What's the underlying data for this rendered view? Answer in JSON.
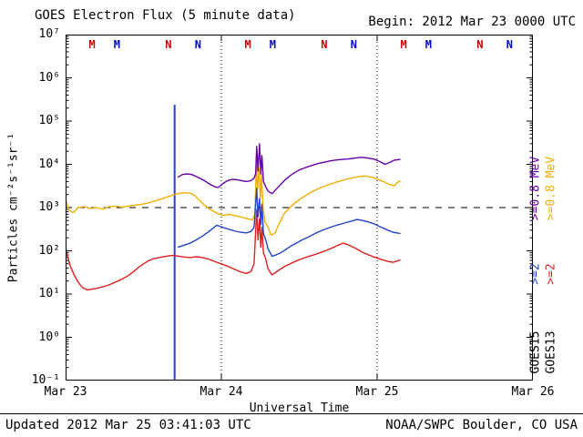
{
  "header": {
    "begin_label": "Begin: 2012 Mar 23 0000 UTC"
  },
  "footer": {
    "updated": "Updated 2012 Mar 25 03:41:03 UTC",
    "source": "NOAA/SWPC Boulder, CO USA"
  },
  "chart_data": {
    "type": "line",
    "title": "GOES Electron Flux (5 minute data)",
    "xlabel": "Universal Time",
    "ylabel": "Particles cm⁻²s⁻¹sr⁻¹",
    "y_scale": "log",
    "y_range": [
      0.1,
      10000000
    ],
    "y_tick_labels": [
      "10⁷",
      "10⁶",
      "10⁵",
      "10⁴",
      "10³",
      "10²",
      "10¹",
      "10⁰",
      "10⁻¹"
    ],
    "x_range_days": [
      0,
      3
    ],
    "x_tick_labels": [
      "Mar 23",
      "Mar 24",
      "Mar 25",
      "Mar 26"
    ],
    "grid": {
      "day_boundaries_t": [
        1,
        2
      ],
      "style": "dotted"
    },
    "threshold_line": {
      "value": 1000,
      "style": "dashed",
      "color": "#000000"
    },
    "event_line": {
      "t": 0.7,
      "flux_min": 0.1,
      "flux_max": 240000,
      "color": "#2244CC"
    },
    "time_markers": [
      {
        "t": 0.17,
        "label": "M",
        "color": "#CC0000"
      },
      {
        "t": 0.33,
        "label": "M",
        "color": "#0000CC"
      },
      {
        "t": 0.66,
        "label": "N",
        "color": "#CC0000"
      },
      {
        "t": 0.85,
        "label": "N",
        "color": "#0000CC"
      },
      {
        "t": 1.17,
        "label": "M",
        "color": "#CC0000"
      },
      {
        "t": 1.33,
        "label": "M",
        "color": "#0000CC"
      },
      {
        "t": 1.66,
        "label": "N",
        "color": "#CC0000"
      },
      {
        "t": 1.85,
        "label": "N",
        "color": "#0000CC"
      },
      {
        "t": 2.17,
        "label": "M",
        "color": "#CC0000"
      },
      {
        "t": 2.33,
        "label": "M",
        "color": "#0000CC"
      },
      {
        "t": 2.66,
        "label": "N",
        "color": "#CC0000"
      },
      {
        "t": 2.85,
        "label": "N",
        "color": "#0000CC"
      }
    ],
    "legend": {
      "columns": [
        {
          "satellite": "GOES15",
          "labels": [
            {
              "text": ">=0.8 MeV",
              "color": "#6600AA"
            },
            {
              "text": ">=2",
              "color": "#2244CC"
            }
          ]
        },
        {
          "satellite": "GOES13",
          "labels": [
            {
              "text": ">=0.8 MeV",
              "color": "#EFAF00"
            },
            {
              "text": ">=2",
              "color": "#DD2020"
            }
          ]
        }
      ]
    },
    "series": [
      {
        "name": "GOES13 >=2 MeV",
        "color": "#DD2020",
        "points": [
          [
            0,
            130
          ],
          [
            0.01,
            80
          ],
          [
            0.03,
            45
          ],
          [
            0.05,
            30
          ],
          [
            0.07,
            22
          ],
          [
            0.09,
            17
          ],
          [
            0.11,
            14
          ],
          [
            0.14,
            12.5
          ],
          [
            0.17,
            13
          ],
          [
            0.2,
            13.5
          ],
          [
            0.23,
            14.5
          ],
          [
            0.26,
            15.5
          ],
          [
            0.29,
            17
          ],
          [
            0.32,
            19
          ],
          [
            0.35,
            21
          ],
          [
            0.38,
            24
          ],
          [
            0.41,
            28
          ],
          [
            0.44,
            34
          ],
          [
            0.47,
            42
          ],
          [
            0.5,
            50
          ],
          [
            0.53,
            58
          ],
          [
            0.56,
            65
          ],
          [
            0.6,
            70
          ],
          [
            0.64,
            74
          ],
          [
            0.68,
            78
          ],
          [
            0.72,
            76
          ],
          [
            0.76,
            72
          ],
          [
            0.8,
            70
          ],
          [
            0.84,
            73
          ],
          [
            0.88,
            70
          ],
          [
            0.92,
            64
          ],
          [
            0.96,
            56
          ],
          [
            1,
            50
          ],
          [
            1.04,
            44
          ],
          [
            1.08,
            38
          ],
          [
            1.12,
            33
          ],
          [
            1.16,
            30
          ],
          [
            1.19,
            33
          ],
          [
            1.21,
            50
          ],
          [
            1.227,
            900
          ],
          [
            1.235,
            180
          ],
          [
            1.245,
            550
          ],
          [
            1.253,
            120
          ],
          [
            1.26,
            350
          ],
          [
            1.27,
            90
          ],
          [
            1.285,
            65
          ],
          [
            1.3,
            38
          ],
          [
            1.325,
            28
          ],
          [
            1.35,
            32
          ],
          [
            1.38,
            38
          ],
          [
            1.41,
            44
          ],
          [
            1.44,
            50
          ],
          [
            1.48,
            58
          ],
          [
            1.52,
            66
          ],
          [
            1.56,
            74
          ],
          [
            1.6,
            82
          ],
          [
            1.64,
            92
          ],
          [
            1.68,
            105
          ],
          [
            1.72,
            120
          ],
          [
            1.75,
            135
          ],
          [
            1.78,
            150
          ],
          [
            1.81,
            140
          ],
          [
            1.84,
            125
          ],
          [
            1.87,
            110
          ],
          [
            1.9,
            95
          ],
          [
            1.94,
            82
          ],
          [
            1.98,
            72
          ],
          [
            2.02,
            64
          ],
          [
            2.06,
            58
          ],
          [
            2.1,
            54
          ],
          [
            2.13,
            58
          ],
          [
            2.15,
            62
          ]
        ]
      },
      {
        "name": "GOES13 >=0.8 MeV",
        "color": "#EFAF00",
        "points": [
          [
            0,
            1600
          ],
          [
            0.02,
            900
          ],
          [
            0.05,
            760
          ],
          [
            0.08,
            1000
          ],
          [
            0.12,
            1050
          ],
          [
            0.16,
            950
          ],
          [
            0.2,
            1000
          ],
          [
            0.24,
            920
          ],
          [
            0.28,
            1050
          ],
          [
            0.32,
            1080
          ],
          [
            0.36,
            1020
          ],
          [
            0.4,
            1080
          ],
          [
            0.44,
            1130
          ],
          [
            0.48,
            1180
          ],
          [
            0.52,
            1250
          ],
          [
            0.56,
            1380
          ],
          [
            0.6,
            1520
          ],
          [
            0.64,
            1700
          ],
          [
            0.68,
            1900
          ],
          [
            0.72,
            2100
          ],
          [
            0.76,
            2200
          ],
          [
            0.8,
            2150
          ],
          [
            0.83,
            1900
          ],
          [
            0.86,
            1450
          ],
          [
            0.89,
            1150
          ],
          [
            0.92,
            950
          ],
          [
            0.95,
            820
          ],
          [
            0.98,
            720
          ],
          [
            1.01,
            660
          ],
          [
            1.05,
            700
          ],
          [
            1.09,
            650
          ],
          [
            1.13,
            600
          ],
          [
            1.17,
            550
          ],
          [
            1.2,
            520
          ],
          [
            1.215,
            700
          ],
          [
            1.225,
            11000
          ],
          [
            1.232,
            2600
          ],
          [
            1.242,
            8000
          ],
          [
            1.25,
            1600
          ],
          [
            1.258,
            6000
          ],
          [
            1.268,
            950
          ],
          [
            1.28,
            460
          ],
          [
            1.3,
            350
          ],
          [
            1.32,
            230
          ],
          [
            1.345,
            260
          ],
          [
            1.37,
            420
          ],
          [
            1.4,
            700
          ],
          [
            1.44,
            1000
          ],
          [
            1.48,
            1350
          ],
          [
            1.52,
            1700
          ],
          [
            1.56,
            2100
          ],
          [
            1.6,
            2500
          ],
          [
            1.64,
            2900
          ],
          [
            1.68,
            3300
          ],
          [
            1.72,
            3700
          ],
          [
            1.76,
            4100
          ],
          [
            1.8,
            4500
          ],
          [
            1.84,
            4850
          ],
          [
            1.88,
            5200
          ],
          [
            1.92,
            5400
          ],
          [
            1.96,
            5100
          ],
          [
            2,
            4600
          ],
          [
            2.04,
            4000
          ],
          [
            2.08,
            3400
          ],
          [
            2.11,
            3200
          ],
          [
            2.13,
            3800
          ],
          [
            2.15,
            4200
          ]
        ]
      },
      {
        "name": "GOES15 >=2 MeV",
        "color": "#2244CC",
        "points": [
          [
            0.72,
            120
          ],
          [
            0.76,
            135
          ],
          [
            0.8,
            150
          ],
          [
            0.84,
            180
          ],
          [
            0.88,
            220
          ],
          [
            0.92,
            280
          ],
          [
            0.95,
            340
          ],
          [
            0.97,
            390
          ],
          [
            1,
            360
          ],
          [
            1.04,
            320
          ],
          [
            1.08,
            290
          ],
          [
            1.12,
            270
          ],
          [
            1.16,
            260
          ],
          [
            1.19,
            280
          ],
          [
            1.21,
            350
          ],
          [
            1.227,
            2800
          ],
          [
            1.235,
            600
          ],
          [
            1.245,
            1600
          ],
          [
            1.253,
            400
          ],
          [
            1.26,
            1200
          ],
          [
            1.27,
            250
          ],
          [
            1.285,
            180
          ],
          [
            1.3,
            110
          ],
          [
            1.325,
            75
          ],
          [
            1.35,
            80
          ],
          [
            1.38,
            90
          ],
          [
            1.41,
            105
          ],
          [
            1.44,
            125
          ],
          [
            1.48,
            150
          ],
          [
            1.52,
            180
          ],
          [
            1.56,
            210
          ],
          [
            1.6,
            250
          ],
          [
            1.64,
            290
          ],
          [
            1.68,
            330
          ],
          [
            1.72,
            370
          ],
          [
            1.76,
            410
          ],
          [
            1.8,
            450
          ],
          [
            1.84,
            490
          ],
          [
            1.87,
            530
          ],
          [
            1.9,
            510
          ],
          [
            1.94,
            470
          ],
          [
            1.98,
            420
          ],
          [
            2.02,
            360
          ],
          [
            2.06,
            310
          ],
          [
            2.1,
            270
          ],
          [
            2.15,
            250
          ]
        ]
      },
      {
        "name": "GOES15 >=0.8 MeV",
        "color": "#6600AA",
        "points": [
          [
            0.72,
            5000
          ],
          [
            0.75,
            5800
          ],
          [
            0.78,
            6000
          ],
          [
            0.81,
            5800
          ],
          [
            0.84,
            5200
          ],
          [
            0.87,
            4600
          ],
          [
            0.9,
            4000
          ],
          [
            0.93,
            3400
          ],
          [
            0.96,
            3000
          ],
          [
            0.98,
            2900
          ],
          [
            1.01,
            3600
          ],
          [
            1.04,
            4200
          ],
          [
            1.07,
            4500
          ],
          [
            1.1,
            4400
          ],
          [
            1.13,
            4200
          ],
          [
            1.16,
            4000
          ],
          [
            1.19,
            4200
          ],
          [
            1.21,
            4800
          ],
          [
            1.22,
            6000
          ],
          [
            1.227,
            26000
          ],
          [
            1.235,
            7000
          ],
          [
            1.245,
            30000
          ],
          [
            1.253,
            6000
          ],
          [
            1.26,
            16000
          ],
          [
            1.27,
            4000
          ],
          [
            1.285,
            3000
          ],
          [
            1.3,
            2400
          ],
          [
            1.325,
            2100
          ],
          [
            1.35,
            2600
          ],
          [
            1.38,
            3400
          ],
          [
            1.41,
            4400
          ],
          [
            1.44,
            5400
          ],
          [
            1.47,
            6400
          ],
          [
            1.5,
            7400
          ],
          [
            1.54,
            8400
          ],
          [
            1.58,
            9400
          ],
          [
            1.62,
            10400
          ],
          [
            1.66,
            11200
          ],
          [
            1.7,
            12000
          ],
          [
            1.74,
            12600
          ],
          [
            1.78,
            13000
          ],
          [
            1.82,
            13400
          ],
          [
            1.86,
            14000
          ],
          [
            1.9,
            14500
          ],
          [
            1.94,
            14000
          ],
          [
            1.98,
            13200
          ],
          [
            2.02,
            11500
          ],
          [
            2.05,
            10000
          ],
          [
            2.08,
            11000
          ],
          [
            2.11,
            12500
          ],
          [
            2.15,
            13000
          ]
        ]
      }
    ]
  }
}
